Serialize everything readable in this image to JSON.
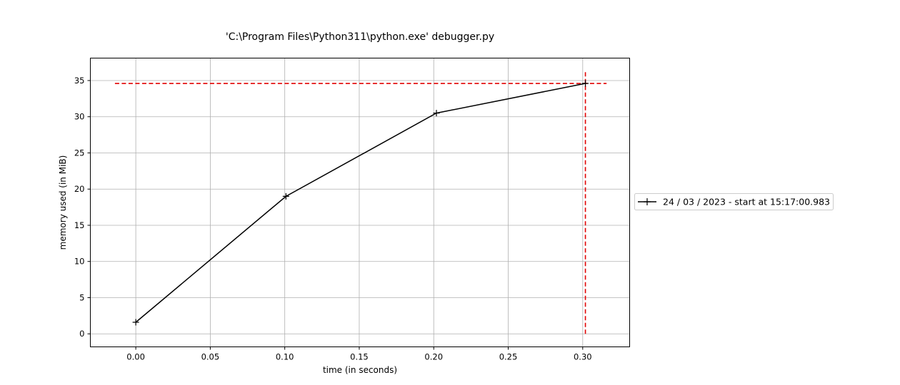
{
  "chart_data": {
    "type": "line",
    "title": "'C:\\Program Files\\Python311\\python.exe' debugger.py",
    "xlabel": "time (in seconds)",
    "ylabel": "memory used (in MiB)",
    "xlim": [
      -0.0305,
      0.3315
    ],
    "ylim": [
      -1.8,
      38.1
    ],
    "xticks": [
      0.0,
      0.05,
      0.1,
      0.15,
      0.2,
      0.25,
      0.3
    ],
    "xtick_labels": [
      "0.00",
      "0.05",
      "0.10",
      "0.15",
      "0.20",
      "0.25",
      "0.30"
    ],
    "yticks": [
      0,
      5,
      10,
      15,
      20,
      25,
      30,
      35
    ],
    "ytick_labels": [
      "0",
      "5",
      "10",
      "15",
      "20",
      "25",
      "30",
      "35"
    ],
    "grid": true,
    "legend_position": "right, outside plot",
    "series": [
      {
        "name": "24 / 03 / 2023 - start at 15:17:00.983",
        "x": [
          0.0,
          0.1008,
          0.2018,
          0.3018
        ],
        "y": [
          1.6,
          19.0,
          30.5,
          34.6
        ],
        "color": "#000000",
        "marker": "+"
      }
    ],
    "max_markers": {
      "color": "#e00000",
      "style": "dashed",
      "horizontal": {
        "y": 34.6,
        "x_from": -0.014,
        "x_to": 0.316
      },
      "vertical": {
        "x": 0.3018,
        "y_from": 0.0,
        "y_to": 36.3
      }
    }
  }
}
